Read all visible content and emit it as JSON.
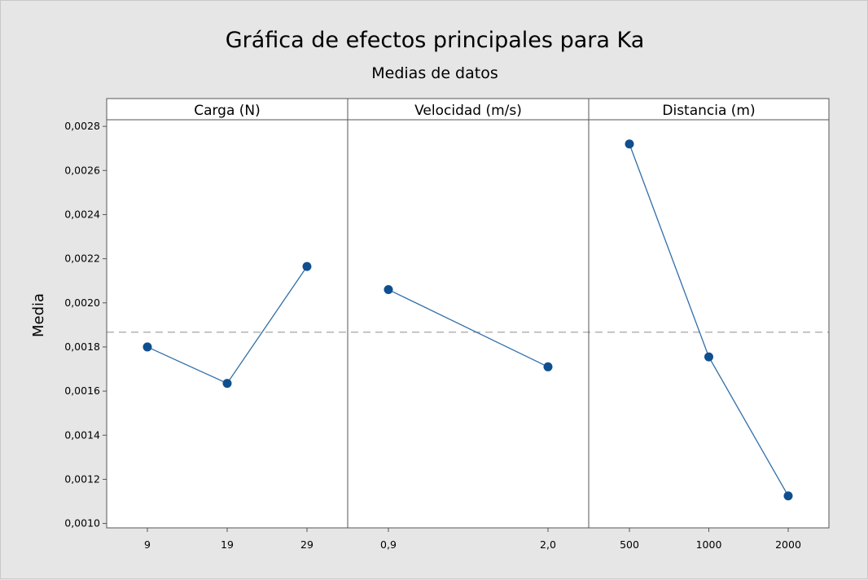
{
  "chart_data": {
    "type": "line",
    "title": "Gráfica de efectos principales para Ka",
    "subtitle": "Medias de datos",
    "ylabel": "Media",
    "ylim": [
      0.00098,
      0.00283
    ],
    "yticks": [
      "0,0010",
      "0,0012",
      "0,0014",
      "0,0016",
      "0,0018",
      "0,0020",
      "0,0022",
      "0,0024",
      "0,0026",
      "0,0028"
    ],
    "ytick_values": [
      0.001,
      0.0012,
      0.0014,
      0.0016,
      0.0018,
      0.002,
      0.0022,
      0.0024,
      0.0026,
      0.0028
    ],
    "reference_mean": 0.001867,
    "grid": false,
    "colors": {
      "line": "#2f6ea8",
      "marker": "#0f4f8f",
      "reference": "#9a9a9a"
    },
    "panels": [
      {
        "label": "Carga (N)",
        "categories": [
          "9",
          "19",
          "29"
        ],
        "values": [
          0.0018,
          0.001635,
          0.002165
        ]
      },
      {
        "label": "Velocidad (m/s)",
        "categories": [
          "0,9",
          "2,0"
        ],
        "values": [
          0.00206,
          0.00171
        ]
      },
      {
        "label": "Distancia (m)",
        "categories": [
          "500",
          "1000",
          "2000"
        ],
        "values": [
          0.00272,
          0.001755,
          0.001125
        ]
      }
    ]
  }
}
